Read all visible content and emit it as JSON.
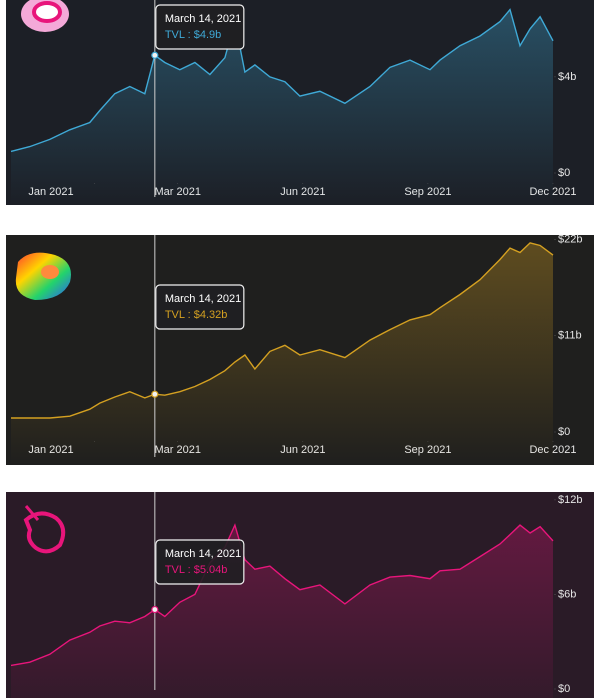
{
  "chart_data": [
    {
      "type": "line",
      "color": "#3fa9d6",
      "x": [
        -2,
        -1.55,
        -1.07,
        -0.59,
        -0.11,
        0.13,
        0.49,
        0.85,
        1.21,
        1.45,
        1.69,
        2.05,
        2.41,
        2.77,
        3.13,
        3.37,
        3.61,
        3.85,
        4.21,
        4.57,
        4.93,
        5.41,
        6.01,
        6.61,
        7.09,
        7.57,
        8.05,
        8.29,
        8.77,
        9.25,
        9.73,
        9.97,
        10.21,
        10.45,
        10.69,
        11.0
      ],
      "values": [
        0.9,
        1.1,
        1.4,
        1.8,
        2.1,
        2.6,
        3.3,
        3.6,
        3.3,
        4.9,
        4.6,
        4.3,
        4.6,
        4.1,
        4.8,
        6.3,
        4.2,
        4.5,
        4.0,
        3.8,
        3.2,
        3.4,
        2.9,
        3.6,
        4.4,
        4.7,
        4.3,
        4.7,
        5.3,
        5.7,
        6.3,
        6.8,
        5.3,
        6.0,
        6.5,
        5.5
      ],
      "xlim": [
        -2,
        11.6
      ],
      "xticks": [
        {
          "value": 0,
          "label": "Jan 2021"
        },
        {
          "value": 2,
          "label": "Mar 2021"
        },
        {
          "value": 5,
          "label": "Jun 2021"
        },
        {
          "value": 8,
          "label": "Sep 2021"
        },
        {
          "value": 11,
          "label": "Dec 2021"
        }
      ],
      "ylim": [
        0,
        7.2
      ],
      "yticks": [
        {
          "value": 0,
          "label": "$0"
        },
        {
          "value": 4,
          "label": "$4b"
        }
      ],
      "tooltip": {
        "x": 1.45,
        "value": 4.9,
        "date": "March 14, 2021",
        "label": "TVL : $4.9b"
      }
    },
    {
      "type": "line",
      "color": "#d4a021",
      "x": [
        -2,
        -1.55,
        -1.07,
        -0.59,
        -0.11,
        0.13,
        0.49,
        0.85,
        1.21,
        1.45,
        1.69,
        2.05,
        2.41,
        2.77,
        3.13,
        3.37,
        3.61,
        3.85,
        4.21,
        4.57,
        4.93,
        5.41,
        6.01,
        6.61,
        7.09,
        7.57,
        8.05,
        8.29,
        8.77,
        9.25,
        9.73,
        9.97,
        10.21,
        10.45,
        10.69,
        11.0
      ],
      "values": [
        1.6,
        1.6,
        1.6,
        1.8,
        2.6,
        3.3,
        4.0,
        4.6,
        3.9,
        4.32,
        4.2,
        4.6,
        5.2,
        6.0,
        7.0,
        8.0,
        8.8,
        7.2,
        9.2,
        9.9,
        8.8,
        9.4,
        8.5,
        10.5,
        11.7,
        12.8,
        13.4,
        14.2,
        15.7,
        17.4,
        19.7,
        21.0,
        20.5,
        21.6,
        21.3,
        20.2
      ],
      "xlim": [
        -2,
        11.6
      ],
      "xticks": [
        {
          "value": 0,
          "label": "Jan 2021"
        },
        {
          "value": 2,
          "label": "Mar 2021"
        },
        {
          "value": 5,
          "label": "Jun 2021"
        },
        {
          "value": 8,
          "label": "Sep 2021"
        },
        {
          "value": 11,
          "label": "Dec 2021"
        }
      ],
      "ylim": [
        0,
        22.5
      ],
      "yticks": [
        {
          "value": 0,
          "label": "$0"
        },
        {
          "value": 11,
          "label": "$11b"
        },
        {
          "value": 22,
          "label": "$22b"
        }
      ],
      "tooltip": {
        "x": 1.45,
        "value": 4.32,
        "date": "March 14, 2021",
        "label": "TVL : $4.32b"
      }
    },
    {
      "type": "line",
      "color": "#e8157b",
      "x": [
        -2,
        -1.55,
        -1.07,
        -0.59,
        -0.11,
        0.13,
        0.49,
        0.85,
        1.21,
        1.45,
        1.69,
        2.05,
        2.41,
        2.77,
        3.13,
        3.37,
        3.61,
        3.85,
        4.21,
        4.57,
        4.93,
        5.41,
        6.01,
        6.61,
        7.09,
        7.57,
        8.05,
        8.29,
        8.77,
        9.25,
        9.73,
        9.97,
        10.21,
        10.45,
        10.69,
        11.0
      ],
      "values": [
        1.5,
        1.7,
        2.2,
        3.1,
        3.6,
        4.0,
        4.3,
        4.2,
        4.6,
        5.04,
        4.6,
        5.5,
        6.0,
        8.0,
        9.0,
        10.4,
        8.2,
        7.6,
        7.8,
        7.0,
        6.3,
        6.6,
        5.4,
        6.6,
        7.1,
        7.2,
        7.0,
        7.5,
        7.6,
        8.4,
        9.2,
        9.8,
        10.4,
        9.9,
        10.3,
        9.4
      ],
      "xlim": [
        -2,
        11.6
      ],
      "ylim": [
        0,
        12.5
      ],
      "yticks": [
        {
          "value": 0,
          "label": "$0"
        },
        {
          "value": 6,
          "label": "$6b"
        },
        {
          "value": 12,
          "label": "$12b"
        }
      ],
      "tooltip": {
        "x": 1.45,
        "value": 5.04,
        "date": "March 14, 2021",
        "label": "TVL : $5.04b"
      }
    }
  ]
}
